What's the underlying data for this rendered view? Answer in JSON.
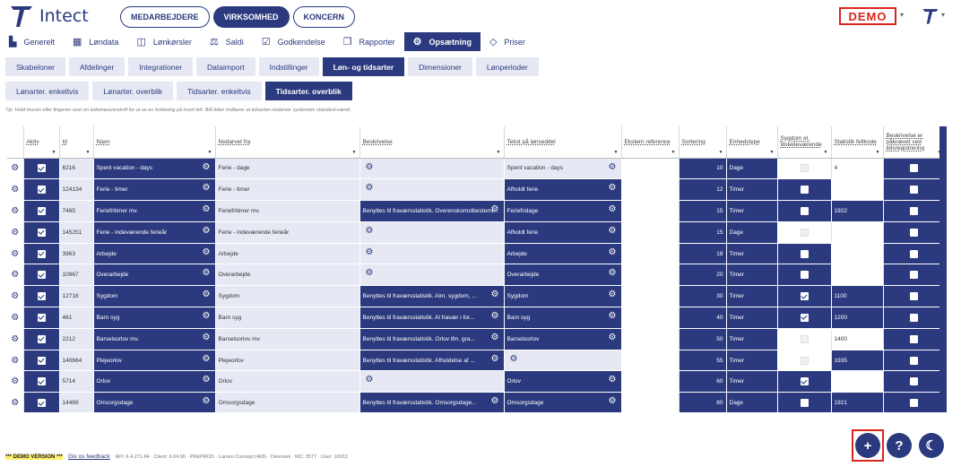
{
  "brand": {
    "name": "Intect"
  },
  "top_pills": [
    "MEDARBEJDERE",
    "VIRKSOMHED",
    "KONCERN"
  ],
  "demo_badge": "DEMO",
  "main_tabs": [
    {
      "label": "Generelt",
      "icon": "bar-chart-icon",
      "glyph": "▙"
    },
    {
      "label": "Løndata",
      "icon": "grid-icon",
      "glyph": "▦"
    },
    {
      "label": "Lønkørsler",
      "icon": "columns-icon",
      "glyph": "◫"
    },
    {
      "label": "Saldi",
      "icon": "scale-icon",
      "glyph": "⚖"
    },
    {
      "label": "Godkendelse",
      "icon": "calendar-check-icon",
      "glyph": "☑"
    },
    {
      "label": "Rapporter",
      "icon": "files-icon",
      "glyph": "❐"
    },
    {
      "label": "Opsætning",
      "icon": "gear-icon",
      "glyph": "⚙"
    },
    {
      "label": "Priser",
      "icon": "diamond-icon",
      "glyph": "◇"
    }
  ],
  "sub_tabs": [
    "Skabeloner",
    "Afdelinger",
    "Integrationer",
    "Dataimport",
    "Indstillinger",
    "Løn- og tidsarter",
    "Dimensioner",
    "Lønperioder"
  ],
  "sub_sub_tabs": [
    "Lønarter. enkeltvis",
    "Lønarter. overblik",
    "Tidsarter. enkeltvis",
    "Tidsarter. overblik"
  ],
  "tip": "Tip: Hold musen eller fingeren over en kolonneoverskrift for at se en forklaring på hvert felt. Blå felter indikerer at tidsarten nedarver systemets standard-værdi.",
  "columns": [
    "Aktiv",
    "Id",
    "Navn",
    "Nedarvet fra",
    "Beskrivelse",
    "Tekst på lønseddel",
    "Ekstern reference",
    "Sortering",
    "Enhedstype",
    "Sygdom el. tilstedeværende",
    "Statistik feltkode",
    "Beskrivelse er påkrævet ved tidsregistrering"
  ],
  "rows": [
    {
      "id": "6216",
      "navn": "Spent vacation - days",
      "nedarvet": "Ferie - dage",
      "beskrivelse": "",
      "tekst": "Spent vacation - days",
      "sortering": "10",
      "enhed": "Dage",
      "sygdom": "disabled",
      "statistik": "4",
      "paakraevet": false
    },
    {
      "id": "124134",
      "navn": "Ferie - timer",
      "nedarvet": "Ferie - timer",
      "beskrivelse": "",
      "tekst": "Afholdt ferie",
      "sortering": "12",
      "enhed": "Timer",
      "sygdom": "off",
      "statistik": "",
      "paakraevet": false
    },
    {
      "id": "7465",
      "navn": "Feriefritimer mv.",
      "nedarvet": "Feriefritimer mv.",
      "beskrivelse": "Benyttes til fraværsstatistik. Overenskomstbestemt feriefridag",
      "tekst": "Feriefridage",
      "sortering": "15",
      "enhed": "Timer",
      "sygdom": "off",
      "statistik": "1922",
      "paakraevet": false
    },
    {
      "id": "145251",
      "navn": "Ferie - indeværende ferieår",
      "nedarvet": "Ferie - indeværende ferieår",
      "beskrivelse": "",
      "tekst": "Afholdt ferie",
      "sortering": "15",
      "enhed": "Dage",
      "sygdom": "disabled",
      "statistik": "",
      "paakraevet": false
    },
    {
      "id": "3963",
      "navn": "Arbejde",
      "nedarvet": "Arbejde",
      "beskrivelse": "",
      "tekst": "Arbejde",
      "sortering": "18",
      "enhed": "Timer",
      "sygdom": "off",
      "statistik": "",
      "paakraevet": false
    },
    {
      "id": "10967",
      "navn": "Overarbejde",
      "nedarvet": "Overarbejde",
      "beskrivelse": "",
      "tekst": "Overarbejde",
      "sortering": "20",
      "enhed": "Timer",
      "sygdom": "off",
      "statistik": "",
      "paakraevet": false
    },
    {
      "id": "12718",
      "navn": "Sygdom",
      "nedarvet": "Sygdom",
      "beskrivelse": "Benyttes til fraværsstatistik. Alm. sygdom, ...",
      "tekst": "Sygdom",
      "sortering": "30",
      "enhed": "Timer",
      "sygdom": "on",
      "statistik": "1100",
      "paakraevet": false
    },
    {
      "id": "461",
      "navn": "Barn syg",
      "nedarvet": "Barn syg",
      "beskrivelse": "Benyttes til fraværsstatistik. Al fravær i for...",
      "tekst": "Barn syg",
      "sortering": "40",
      "enhed": "Timer",
      "sygdom": "on",
      "statistik": "1200",
      "paakraevet": false
    },
    {
      "id": "2212",
      "navn": "Barselsorlov mv.",
      "nedarvet": "Barselsorlov mv.",
      "beskrivelse": "Benyttes til fraværsstatistik. Orlov ifm. gra...",
      "tekst": "Barselsorlov",
      "sortering": "50",
      "enhed": "Timer",
      "sygdom": "disabled",
      "statistik": "1400",
      "paakraevet": false
    },
    {
      "id": "140664",
      "navn": "Plejeorlov",
      "nedarvet": "Plejeorlov",
      "beskrivelse": "Benyttes til fraværsstatistik. Afholdelse af ...",
      "tekst": "",
      "sortering": "55",
      "enhed": "Timer",
      "sygdom": "disabled",
      "statistik": "1935",
      "paakraevet": false
    },
    {
      "id": "5714",
      "navn": "Orlov",
      "nedarvet": "Orlov",
      "beskrivelse": "",
      "tekst": "Orlov",
      "sortering": "60",
      "enhed": "Timer",
      "sygdom": "on",
      "statistik": "",
      "paakraevet": false
    },
    {
      "id": "14469",
      "navn": "Omsorgsdage",
      "nedarvet": "Omsorgsdage",
      "beskrivelse": "Benyttes til fraværsstatistik. Omsorgsdage...",
      "tekst": "Omsorgsdage",
      "sortering": "80",
      "enhed": "Dage",
      "sygdom": "off",
      "statistik": "1921",
      "paakraevet": false
    }
  ],
  "footer": {
    "demo_version": "*** DEMO VERSION ***",
    "feedback": "Giv os feedback",
    "meta": "API: 6.4.271.84 · Client: 6.04.90 · PREPROD · Larsen Concept (468) · Denmark · MC: 3577 · User: 10013"
  },
  "fab": {
    "add": "+",
    "help": "?",
    "theme": "☾"
  },
  "colors": {
    "accent": "#2b3a7e",
    "light": "#e6e9f4",
    "demo": "#d9261c"
  }
}
